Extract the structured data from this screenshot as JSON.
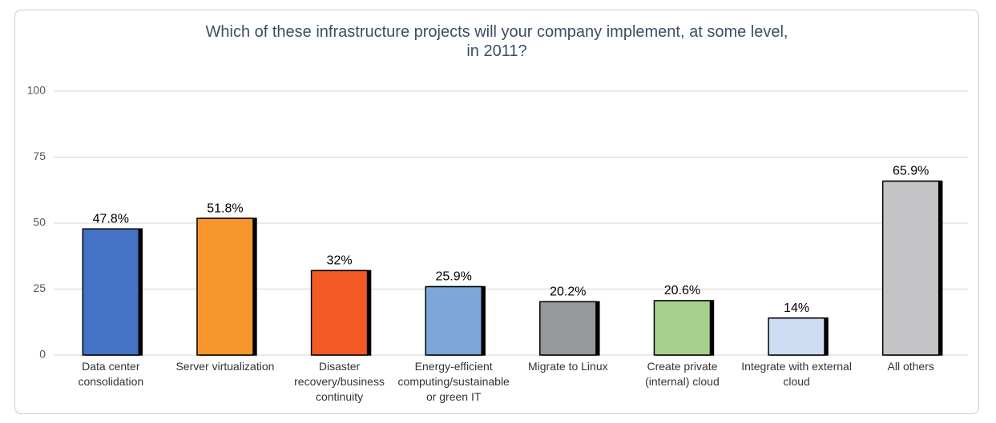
{
  "chart_data": {
    "type": "bar",
    "title": "Which of these infrastructure projects will your company implement, at some level, in 2011?",
    "categories": [
      "Data center consolidation",
      "Server virtualization",
      "Disaster recovery/business continuity",
      "Energy-efficient computing/sustainable or green IT",
      "Migrate to Linux",
      "Create private (internal) cloud",
      "Integrate with external cloud",
      "All others"
    ],
    "values": [
      47.8,
      51.8,
      32,
      25.9,
      20.2,
      20.6,
      14,
      65.9
    ],
    "value_labels": [
      "47.8%",
      "51.8%",
      "32%",
      "25.9%",
      "20.2%",
      "20.6%",
      "14%",
      "65.9%"
    ],
    "colors": [
      "#4472c4",
      "#f7962a",
      "#f25a24",
      "#7ea6d8",
      "#97989a",
      "#a8d08d",
      "#cddcf3",
      "#c4c4c6"
    ],
    "ylim": [
      0,
      100
    ],
    "yticks": [
      0,
      25,
      50,
      75,
      100
    ],
    "grid": true
  }
}
